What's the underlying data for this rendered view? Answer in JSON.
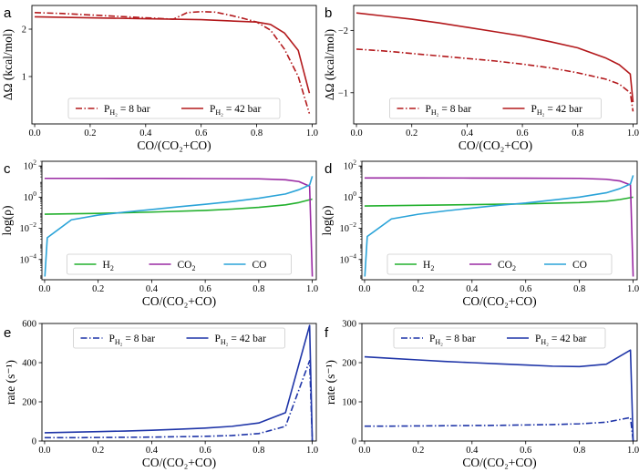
{
  "chart_data": [
    {
      "id": "a",
      "type": "line",
      "letter": "a",
      "xlabel": "CO/(CO₂+CO)",
      "ylabel": "ΔΩ (kcal/mol)",
      "xlim": [
        -0.01,
        1.015
      ],
      "ylim": [
        0.0,
        2.5
      ],
      "yscale": "linear",
      "xticks": [
        0.0,
        0.2,
        0.4,
        0.6,
        0.8,
        1.0
      ],
      "xtick_labels": [
        "0.0",
        "0.2",
        "0.4",
        "0.6",
        "0.8",
        "1.0"
      ],
      "yticks": [
        1,
        2
      ],
      "ytick_labels": [
        "1",
        "2"
      ],
      "legend_position": "bottom",
      "series": [
        {
          "name": "P_H2 = 8 bar",
          "label_main": "P",
          "label_sub": "H₂",
          "label_rest": " = 8 bar",
          "color": "#b3191c",
          "dash": "7,2.5,1.5,2.5",
          "x": [
            0.0,
            0.1,
            0.2,
            0.3,
            0.4,
            0.5,
            0.55,
            0.6,
            0.65,
            0.7,
            0.75,
            0.8,
            0.85,
            0.9,
            0.95,
            0.99
          ],
          "y": [
            2.35,
            2.33,
            2.3,
            2.27,
            2.24,
            2.21,
            2.35,
            2.37,
            2.36,
            2.3,
            2.23,
            2.15,
            1.98,
            1.58,
            1.0,
            0.22
          ]
        },
        {
          "name": "P_H2 = 42 bar",
          "label_main": "P",
          "label_sub": "H₂",
          "label_rest": " = 42 bar",
          "color": "#b3191c",
          "dash": "",
          "x": [
            0.0,
            0.2,
            0.4,
            0.6,
            0.8,
            0.85,
            0.9,
            0.95,
            0.99
          ],
          "y": [
            2.26,
            2.24,
            2.22,
            2.2,
            2.15,
            2.1,
            1.92,
            1.55,
            0.65
          ]
        }
      ]
    },
    {
      "id": "b",
      "type": "line",
      "letter": "b",
      "xlabel": "CO/(CO₂+CO)",
      "ylabel": "ΔΩ (kcal/mol)",
      "xlim": [
        -0.01,
        1.015
      ],
      "ylim": [
        -0.5,
        -2.4
      ],
      "yscale": "linear",
      "xticks": [
        0.0,
        0.2,
        0.4,
        0.6,
        0.8,
        1.0
      ],
      "xtick_labels": [
        "0.0",
        "0.2",
        "0.4",
        "0.6",
        "0.8",
        "1.0"
      ],
      "yticks": [
        -1,
        -2
      ],
      "ytick_labels": [
        "−1",
        "−2"
      ],
      "legend_position": "bottom",
      "series": [
        {
          "name": "P_H2 = 8 bar",
          "label_main": "P",
          "label_sub": "H₂",
          "label_rest": " = 8 bar",
          "color": "#b3191c",
          "dash": "7,2.5,1.5,2.5",
          "x": [
            0.0,
            0.1,
            0.2,
            0.3,
            0.4,
            0.5,
            0.6,
            0.7,
            0.8,
            0.9,
            0.95,
            0.99,
            1.0
          ],
          "y": [
            -1.7,
            -1.67,
            -1.63,
            -1.59,
            -1.55,
            -1.51,
            -1.46,
            -1.4,
            -1.32,
            -1.22,
            -1.14,
            -1.0,
            -0.7
          ]
        },
        {
          "name": "P_H2 = 42 bar",
          "label_main": "P",
          "label_sub": "H₂",
          "label_rest": " = 42 bar",
          "color": "#b3191c",
          "dash": "",
          "x": [
            0.0,
            0.1,
            0.2,
            0.3,
            0.4,
            0.5,
            0.6,
            0.7,
            0.8,
            0.9,
            0.95,
            0.99,
            1.0
          ],
          "y": [
            -2.28,
            -2.23,
            -2.18,
            -2.12,
            -2.05,
            -1.98,
            -1.91,
            -1.82,
            -1.72,
            -1.56,
            -1.45,
            -1.3,
            -0.85
          ]
        }
      ]
    },
    {
      "id": "c",
      "type": "line",
      "letter": "c",
      "xlabel": "CO/(CO₂+CO)",
      "ylabel": "log(ρ)",
      "xlim": [
        -0.01,
        1.015
      ],
      "ylim": [
        5e-06,
        200
      ],
      "yscale": "log",
      "xticks": [
        0.0,
        0.2,
        0.4,
        0.6,
        0.8,
        1.0
      ],
      "xtick_labels": [
        "0.0",
        "0.2",
        "0.4",
        "0.6",
        "0.8",
        "1.0"
      ],
      "yticks": [
        0.0001,
        0.01,
        1,
        100
      ],
      "ytick_labels": [
        {
          "base": "10",
          "exp": "−4"
        },
        {
          "base": "10",
          "exp": "−2"
        },
        {
          "base": "10",
          "exp": "0"
        },
        {
          "base": "10",
          "exp": "2"
        }
      ],
      "legend_position": "bottom",
      "series": [
        {
          "name": "H2",
          "label_main": "H",
          "label_sub": "2",
          "label_rest": "",
          "color": "#22b02d",
          "dash": "",
          "x": [
            0.0,
            0.2,
            0.4,
            0.6,
            0.7,
            0.8,
            0.9,
            0.95,
            1.0
          ],
          "y": [
            0.08,
            0.09,
            0.11,
            0.14,
            0.17,
            0.22,
            0.32,
            0.45,
            0.75
          ]
        },
        {
          "name": "CO2",
          "label_main": "CO",
          "label_sub": "2",
          "label_rest": "",
          "color": "#9a2aa3",
          "dash": "",
          "x": [
            0.0,
            0.2,
            0.4,
            0.6,
            0.8,
            0.9,
            0.95,
            0.99,
            1.0
          ],
          "y": [
            16,
            16,
            15.8,
            15.5,
            15,
            13,
            10,
            5,
            8e-06
          ]
        },
        {
          "name": "CO",
          "label_main": "CO",
          "label_sub": "",
          "label_rest": "",
          "color": "#2aa3d8",
          "dash": "",
          "x": [
            0.001,
            0.01,
            0.1,
            0.2,
            0.3,
            0.4,
            0.5,
            0.6,
            0.7,
            0.8,
            0.9,
            0.95,
            0.99,
            1.0
          ],
          "y": [
            8e-06,
            0.0025,
            0.035,
            0.07,
            0.11,
            0.16,
            0.24,
            0.35,
            0.52,
            0.85,
            1.6,
            3,
            6,
            22
          ]
        }
      ]
    },
    {
      "id": "d",
      "type": "line",
      "letter": "d",
      "xlabel": "CO/(CO₂+CO)",
      "ylabel": "log(ρ)",
      "xlim": [
        -0.01,
        1.015
      ],
      "ylim": [
        5e-06,
        200
      ],
      "yscale": "log",
      "xticks": [
        0.0,
        0.2,
        0.4,
        0.6,
        0.8,
        1.0
      ],
      "xtick_labels": [
        "0.0",
        "0.2",
        "0.4",
        "0.6",
        "0.8",
        "1.0"
      ],
      "yticks": [
        0.0001,
        0.01,
        1,
        100
      ],
      "ytick_labels": [
        {
          "base": "10",
          "exp": "−4"
        },
        {
          "base": "10",
          "exp": "−2"
        },
        {
          "base": "10",
          "exp": "0"
        },
        {
          "base": "10",
          "exp": "2"
        }
      ],
      "legend_position": "bottom",
      "series": [
        {
          "name": "H2",
          "label_main": "H",
          "label_sub": "2",
          "label_rest": "",
          "color": "#22b02d",
          "dash": "",
          "x": [
            0.0,
            0.2,
            0.4,
            0.6,
            0.8,
            0.9,
            0.95,
            1.0
          ],
          "y": [
            0.27,
            0.3,
            0.33,
            0.37,
            0.45,
            0.55,
            0.7,
            1.0
          ]
        },
        {
          "name": "CO2",
          "label_main": "CO",
          "label_sub": "2",
          "label_rest": "",
          "color": "#9a2aa3",
          "dash": "",
          "x": [
            0.0,
            0.2,
            0.4,
            0.6,
            0.8,
            0.9,
            0.95,
            0.99,
            1.0
          ],
          "y": [
            17,
            17,
            16.8,
            16.5,
            16,
            14,
            11,
            6,
            8e-06
          ]
        },
        {
          "name": "CO",
          "label_main": "CO",
          "label_sub": "",
          "label_rest": "",
          "color": "#2aa3d8",
          "dash": "",
          "x": [
            0.001,
            0.01,
            0.1,
            0.2,
            0.3,
            0.4,
            0.5,
            0.6,
            0.7,
            0.8,
            0.9,
            0.95,
            0.99,
            1.0
          ],
          "y": [
            8e-06,
            0.003,
            0.04,
            0.08,
            0.13,
            0.2,
            0.3,
            0.42,
            0.65,
            1.0,
            1.9,
            3.5,
            7,
            25
          ]
        }
      ]
    },
    {
      "id": "e",
      "type": "line",
      "letter": "e",
      "xlabel": "CO/(CO₂+CO)",
      "ylabel": "rate (s⁻¹)",
      "xlim": [
        -0.01,
        1.015
      ],
      "ylim": [
        0,
        600
      ],
      "yscale": "linear",
      "xticks": [
        0.0,
        0.2,
        0.4,
        0.6,
        0.8,
        1.0
      ],
      "xtick_labels": [
        "0.0",
        "0.2",
        "0.4",
        "0.6",
        "0.8",
        "1.0"
      ],
      "yticks": [
        0,
        200,
        400,
        600
      ],
      "ytick_labels": [
        "0",
        "200",
        "400",
        "600"
      ],
      "legend_position": "top",
      "series": [
        {
          "name": "P_H2 = 8 bar",
          "label_main": "P",
          "label_sub": "H₂",
          "label_rest": " = 8 bar",
          "color": "#1f35a8",
          "dash": "7,2.5,1.5,2.5",
          "x": [
            0.0,
            0.1,
            0.2,
            0.3,
            0.4,
            0.5,
            0.6,
            0.7,
            0.8,
            0.9,
            0.99,
            1.0
          ],
          "y": [
            17,
            17,
            18,
            19,
            20,
            22,
            24,
            28,
            38,
            75,
            410,
            0
          ]
        },
        {
          "name": "P_H2 = 42 bar",
          "label_main": "P",
          "label_sub": "H₂",
          "label_rest": " = 42 bar",
          "color": "#1f35a8",
          "dash": "",
          "x": [
            0.0,
            0.1,
            0.2,
            0.3,
            0.4,
            0.5,
            0.6,
            0.7,
            0.8,
            0.9,
            0.99,
            1.0
          ],
          "y": [
            42,
            45,
            48,
            51,
            55,
            60,
            66,
            75,
            92,
            145,
            590,
            0
          ]
        }
      ]
    },
    {
      "id": "f",
      "type": "line",
      "letter": "f",
      "xlabel": "CO/(CO₂+CO)",
      "ylabel": "rate (s⁻¹)",
      "xlim": [
        -0.01,
        1.015
      ],
      "ylim": [
        0,
        300
      ],
      "yscale": "linear",
      "xticks": [
        0.0,
        0.2,
        0.4,
        0.6,
        0.8,
        1.0
      ],
      "xtick_labels": [
        "0.0",
        "0.2",
        "0.4",
        "0.6",
        "0.8",
        "1.0"
      ],
      "yticks": [
        0,
        100,
        200,
        300
      ],
      "ytick_labels": [
        "0",
        "100",
        "200",
        "300"
      ],
      "legend_position": "top",
      "series": [
        {
          "name": "P_H2 = 8 bar",
          "label_main": "P",
          "label_sub": "H₂",
          "label_rest": " = 8 bar",
          "color": "#1f35a8",
          "dash": "7,2.5,1.5,2.5",
          "x": [
            0.0,
            0.1,
            0.2,
            0.3,
            0.4,
            0.5,
            0.6,
            0.7,
            0.8,
            0.9,
            0.99,
            1.0
          ],
          "y": [
            38,
            38,
            38.5,
            39,
            39.5,
            40,
            41,
            42,
            44,
            48,
            60,
            0
          ]
        },
        {
          "name": "P_H2 = 42 bar",
          "label_main": "P",
          "label_sub": "H₂",
          "label_rest": " = 42 bar",
          "color": "#1f35a8",
          "dash": "",
          "x": [
            0.0,
            0.1,
            0.2,
            0.3,
            0.4,
            0.5,
            0.6,
            0.7,
            0.8,
            0.9,
            0.99,
            1.0
          ],
          "y": [
            215,
            211,
            207,
            203,
            200,
            197,
            194,
            191,
            190,
            196,
            232,
            0
          ]
        }
      ]
    }
  ]
}
